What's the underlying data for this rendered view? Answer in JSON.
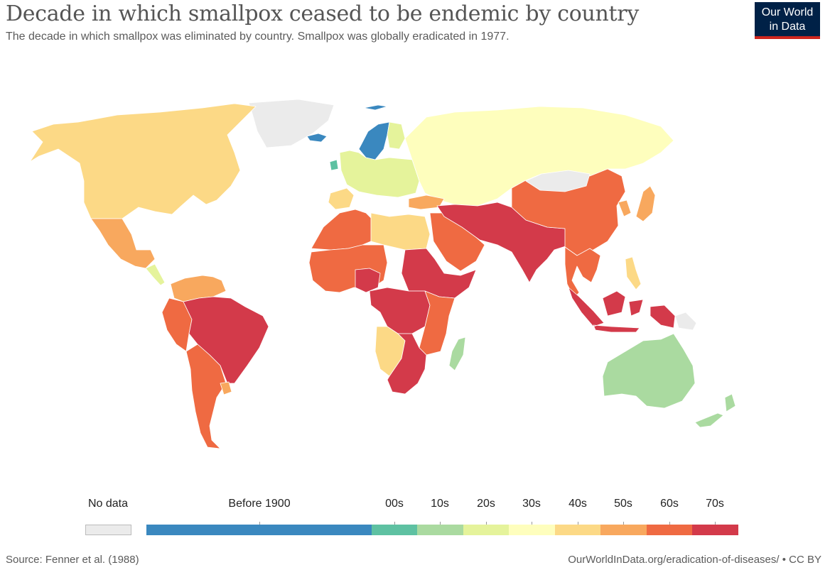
{
  "header": {
    "title": "Decade in which smallpox ceased to be endemic by country",
    "subtitle": "The decade in which smallpox was eliminated by country. Smallpox was globally eradicated in 1977."
  },
  "logo": {
    "line1": "Our World",
    "line2": "in Data"
  },
  "legend": {
    "no_data": {
      "label": "No data",
      "color": "#ebebeb"
    },
    "bins": [
      {
        "label": "Before 1900",
        "color": "#3a88bf"
      },
      {
        "label": "00s",
        "color": "#5ec1a2"
      },
      {
        "label": "10s",
        "color": "#aadaa0"
      },
      {
        "label": "20s",
        "color": "#e5f39b"
      },
      {
        "label": "30s",
        "color": "#fefebd"
      },
      {
        "label": "40s",
        "color": "#fcd986"
      },
      {
        "label": "50s",
        "color": "#f8a85e"
      },
      {
        "label": "60s",
        "color": "#ef6a42"
      },
      {
        "label": "70s",
        "color": "#d33a4a"
      }
    ]
  },
  "regions": [
    {
      "name": "greenland",
      "bin": "No data"
    },
    {
      "name": "north-america",
      "bin": "40s"
    },
    {
      "name": "mexico",
      "bin": "50s"
    },
    {
      "name": "central-america",
      "bin": "20s"
    },
    {
      "name": "northern-south-america",
      "bin": "50s"
    },
    {
      "name": "andean-west",
      "bin": "60s"
    },
    {
      "name": "brazil",
      "bin": "70s"
    },
    {
      "name": "southern-cone",
      "bin": "60s"
    },
    {
      "name": "uruguay",
      "bin": "50s"
    },
    {
      "name": "iceland",
      "bin": "Before 1900"
    },
    {
      "name": "scandinavia",
      "bin": "Before 1900"
    },
    {
      "name": "finland",
      "bin": "20s"
    },
    {
      "name": "ireland",
      "bin": "00s"
    },
    {
      "name": "western-europe",
      "bin": "20s"
    },
    {
      "name": "iberia",
      "bin": "40s"
    },
    {
      "name": "russia-central-asia",
      "bin": "30s"
    },
    {
      "name": "turkey",
      "bin": "50s"
    },
    {
      "name": "north-africa-west",
      "bin": "60s"
    },
    {
      "name": "libya-egypt",
      "bin": "40s"
    },
    {
      "name": "west-africa",
      "bin": "60s"
    },
    {
      "name": "nigeria",
      "bin": "70s"
    },
    {
      "name": "sudan-horn",
      "bin": "70s"
    },
    {
      "name": "central-africa",
      "bin": "70s"
    },
    {
      "name": "east-africa",
      "bin": "60s"
    },
    {
      "name": "angola",
      "bin": "40s"
    },
    {
      "name": "southern-africa",
      "bin": "70s"
    },
    {
      "name": "madagascar",
      "bin": "10s"
    },
    {
      "name": "arabia",
      "bin": "60s"
    },
    {
      "name": "south-asia",
      "bin": "70s"
    },
    {
      "name": "china",
      "bin": "60s"
    },
    {
      "name": "mongolia",
      "bin": "No data"
    },
    {
      "name": "japan-korea",
      "bin": "50s"
    },
    {
      "name": "southeast-asia",
      "bin": "60s"
    },
    {
      "name": "philippines",
      "bin": "40s"
    },
    {
      "name": "indonesia",
      "bin": "70s"
    },
    {
      "name": "papua",
      "bin": "No data"
    },
    {
      "name": "australia",
      "bin": "10s"
    },
    {
      "name": "new-zealand",
      "bin": "10s"
    }
  ],
  "footer": {
    "source": "Source: Fenner et al. (1988)",
    "url": "OurWorldInData.org/eradication-of-diseases/ • CC BY"
  }
}
